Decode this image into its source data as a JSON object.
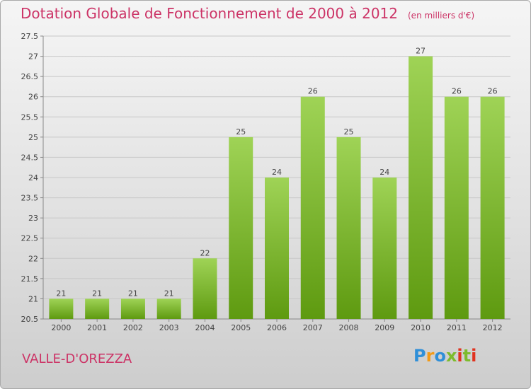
{
  "title": "Dotation Globale de Fonctionnement de 2000 à 2012",
  "subtitle": "(en milliers d'€)",
  "place": "VALLE-D'OREZZA",
  "brand": {
    "text": "Proxiti",
    "colors": [
      "#2f8fd8",
      "#f29a16",
      "#7dbb2c",
      "#e0331f"
    ]
  },
  "colors": {
    "bar_light": "#9fd356",
    "bar_dark": "#5e9a10",
    "title": "#cc3366",
    "grid": "#c8c8c8"
  },
  "chart_data": {
    "type": "bar",
    "title": "Dotation Globale de Fonctionnement de 2000 à 2012",
    "subtitle": "(en milliers d'€)",
    "xlabel": "",
    "ylabel": "",
    "categories": [
      "2000",
      "2001",
      "2002",
      "2003",
      "2004",
      "2005",
      "2006",
      "2007",
      "2008",
      "2009",
      "2010",
      "2011",
      "2012"
    ],
    "values": [
      21,
      21,
      21,
      21,
      22,
      25,
      24,
      26,
      25,
      24,
      27,
      26,
      26
    ],
    "data_labels": [
      "21",
      "21",
      "21",
      "21",
      "22",
      "25",
      "24",
      "26",
      "25",
      "24",
      "27",
      "26",
      "26"
    ],
    "ylim": [
      20.5,
      27.5
    ],
    "yticks": [
      "20.5",
      "21",
      "21.5",
      "22",
      "22.5",
      "23",
      "23.5",
      "24",
      "24.5",
      "25",
      "25.5",
      "26",
      "26.5",
      "27",
      "27.5"
    ],
    "grid": true,
    "legend": "none"
  }
}
